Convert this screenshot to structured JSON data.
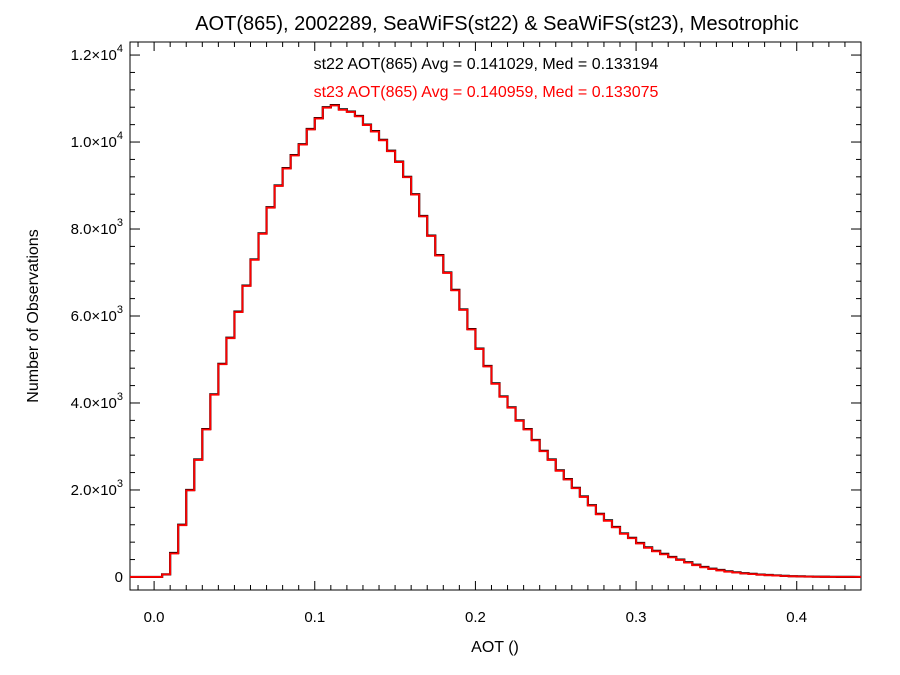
{
  "chart_data": {
    "type": "line",
    "title": "AOT(865), 2002289, SeaWiFS(st22) & SeaWiFS(st23), Mesotrophic",
    "xlabel": "AOT ()",
    "ylabel": "Number of Observations",
    "xlim": [
      -0.015,
      0.44
    ],
    "ylim": [
      -300,
      12300
    ],
    "x_ticks": [
      0.0,
      0.1,
      0.2,
      0.3,
      0.4
    ],
    "x_tick_labels": [
      "0.0",
      "0.1",
      "0.2",
      "0.3",
      "0.4"
    ],
    "y_ticks": [
      {
        "value": 0,
        "mant": "0",
        "exp": ""
      },
      {
        "value": 2000,
        "mant": "2.0×10",
        "exp": "3"
      },
      {
        "value": 4000,
        "mant": "4.0×10",
        "exp": "3"
      },
      {
        "value": 6000,
        "mant": "6.0×10",
        "exp": "3"
      },
      {
        "value": 8000,
        "mant": "8.0×10",
        "exp": "3"
      },
      {
        "value": 10000,
        "mant": "1.0×10",
        "exp": "4"
      },
      {
        "value": 12000,
        "mant": "1.2×10",
        "exp": "4"
      }
    ],
    "grid": false,
    "step": "histogram",
    "annotations": [
      {
        "text": "st22 AOT(865) Avg = 0.141029, Med = 0.133194",
        "color": "#000000"
      },
      {
        "text": "st23 AOT(865) Avg = 0.140959, Med = 0.133075",
        "color": "#ff0000"
      }
    ],
    "series": [
      {
        "color": "#000000",
        "x": [
          0.0,
          0.005,
          0.01,
          0.015,
          0.02,
          0.025,
          0.03,
          0.035,
          0.04,
          0.045,
          0.05,
          0.055,
          0.06,
          0.065,
          0.07,
          0.075,
          0.08,
          0.085,
          0.09,
          0.095,
          0.1,
          0.105,
          0.11,
          0.115,
          0.12,
          0.125,
          0.13,
          0.135,
          0.14,
          0.145,
          0.15,
          0.155,
          0.16,
          0.165,
          0.17,
          0.175,
          0.18,
          0.185,
          0.19,
          0.195,
          0.2,
          0.205,
          0.21,
          0.215,
          0.22,
          0.225,
          0.23,
          0.235,
          0.24,
          0.245,
          0.25,
          0.255,
          0.26,
          0.265,
          0.27,
          0.275,
          0.28,
          0.285,
          0.29,
          0.295,
          0.3,
          0.305,
          0.31,
          0.315,
          0.32,
          0.325,
          0.33,
          0.335,
          0.34,
          0.345,
          0.35,
          0.355,
          0.36,
          0.365,
          0.37,
          0.375,
          0.38,
          0.385,
          0.39,
          0.395,
          0.4,
          0.405,
          0.41,
          0.415,
          0.42,
          0.425,
          0.43
        ],
        "y": [
          0,
          60,
          550,
          1200,
          2000,
          2700,
          3400,
          4200,
          4900,
          5500,
          6100,
          6700,
          7300,
          7900,
          8500,
          9000,
          9400,
          9700,
          9950,
          10300,
          10550,
          10800,
          10850,
          10750,
          10700,
          10600,
          10400,
          10250,
          10050,
          9800,
          9550,
          9200,
          8800,
          8300,
          7850,
          7400,
          7000,
          6600,
          6150,
          5700,
          5250,
          4850,
          4450,
          4150,
          3900,
          3600,
          3400,
          3150,
          2900,
          2700,
          2450,
          2250,
          2050,
          1850,
          1650,
          1450,
          1300,
          1150,
          1000,
          900,
          780,
          680,
          600,
          530,
          460,
          400,
          340,
          280,
          230,
          190,
          160,
          130,
          105,
          85,
          70,
          55,
          45,
          35,
          25,
          18,
          13,
          9,
          6,
          4,
          3,
          2,
          1
        ]
      },
      {
        "color": "#ff0000",
        "x": [
          0.0,
          0.005,
          0.01,
          0.015,
          0.02,
          0.025,
          0.03,
          0.035,
          0.04,
          0.045,
          0.05,
          0.055,
          0.06,
          0.065,
          0.07,
          0.075,
          0.08,
          0.085,
          0.09,
          0.095,
          0.1,
          0.105,
          0.11,
          0.115,
          0.12,
          0.125,
          0.13,
          0.135,
          0.14,
          0.145,
          0.15,
          0.155,
          0.16,
          0.165,
          0.17,
          0.175,
          0.18,
          0.185,
          0.19,
          0.195,
          0.2,
          0.205,
          0.21,
          0.215,
          0.22,
          0.225,
          0.23,
          0.235,
          0.24,
          0.245,
          0.25,
          0.255,
          0.26,
          0.265,
          0.27,
          0.275,
          0.28,
          0.285,
          0.29,
          0.295,
          0.3,
          0.305,
          0.31,
          0.315,
          0.32,
          0.325,
          0.33,
          0.335,
          0.34,
          0.345,
          0.35,
          0.355,
          0.36,
          0.365,
          0.37,
          0.375,
          0.38,
          0.385,
          0.39,
          0.395,
          0.4,
          0.405,
          0.41,
          0.415,
          0.42,
          0.425,
          0.43
        ],
        "y": [
          0,
          60,
          540,
          1190,
          1990,
          2690,
          3390,
          4190,
          4890,
          5490,
          6090,
          6690,
          7290,
          7890,
          8490,
          8990,
          9390,
          9690,
          9940,
          10290,
          10540,
          10790,
          10840,
          10740,
          10690,
          10590,
          10390,
          10240,
          10040,
          9790,
          9540,
          9190,
          8790,
          8290,
          7840,
          7390,
          6990,
          6590,
          6140,
          5690,
          5240,
          4840,
          4440,
          4140,
          3890,
          3590,
          3390,
          3140,
          2890,
          2690,
          2440,
          2240,
          2040,
          1840,
          1640,
          1440,
          1290,
          1140,
          990,
          890,
          770,
          670,
          590,
          520,
          450,
          390,
          330,
          270,
          220,
          180,
          150,
          120,
          100,
          80,
          65,
          50,
          40,
          30,
          22,
          15,
          11,
          8,
          5,
          3,
          2,
          1,
          1
        ]
      }
    ]
  }
}
